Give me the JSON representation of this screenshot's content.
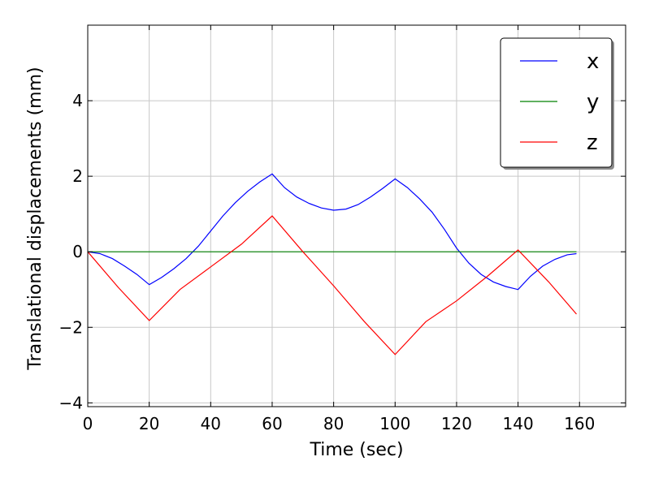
{
  "chart_data": {
    "type": "line",
    "title": "",
    "xlabel": "Time (sec)",
    "ylabel": "Translational displacements (mm)",
    "xlim": [
      0,
      175
    ],
    "ylim": [
      -4.1,
      6.0
    ],
    "xticks": [
      0,
      20,
      40,
      60,
      80,
      100,
      120,
      140,
      160
    ],
    "yticks": [
      -4,
      -2,
      0,
      2,
      4
    ],
    "grid": true,
    "legend_position": "top-right",
    "series": [
      {
        "name": "x",
        "color": "#0000ff",
        "x": [
          0,
          4,
          8,
          12,
          16,
          20,
          24,
          28,
          32,
          36,
          40,
          44,
          48,
          52,
          56,
          60,
          64,
          68,
          72,
          76,
          80,
          84,
          88,
          92,
          96,
          100,
          104,
          108,
          112,
          116,
          120,
          124,
          128,
          132,
          136,
          140,
          144,
          148,
          152,
          156,
          159
        ],
        "y": [
          0.0,
          -0.05,
          -0.18,
          -0.38,
          -0.6,
          -0.87,
          -0.68,
          -0.45,
          -0.18,
          0.15,
          0.55,
          0.95,
          1.3,
          1.6,
          1.85,
          2.06,
          1.7,
          1.45,
          1.28,
          1.16,
          1.1,
          1.13,
          1.25,
          1.45,
          1.68,
          1.93,
          1.7,
          1.4,
          1.05,
          0.6,
          0.1,
          -0.3,
          -0.6,
          -0.8,
          -0.92,
          -1.0,
          -0.65,
          -0.38,
          -0.2,
          -0.08,
          -0.05
        ]
      },
      {
        "name": "y",
        "color": "#008000",
        "x": [
          0,
          159
        ],
        "y": [
          0.0,
          0.0
        ]
      },
      {
        "name": "z",
        "color": "#ff0000",
        "x": [
          0,
          10,
          20,
          30,
          40,
          50,
          60,
          70,
          80,
          90,
          100,
          110,
          120,
          130,
          140,
          150,
          159
        ],
        "y": [
          0.0,
          -0.95,
          -1.82,
          -1.0,
          -0.4,
          0.2,
          0.95,
          0.0,
          -0.9,
          -1.85,
          -2.72,
          -1.85,
          -1.3,
          -0.65,
          0.05,
          -0.8,
          -1.65
        ]
      }
    ]
  }
}
